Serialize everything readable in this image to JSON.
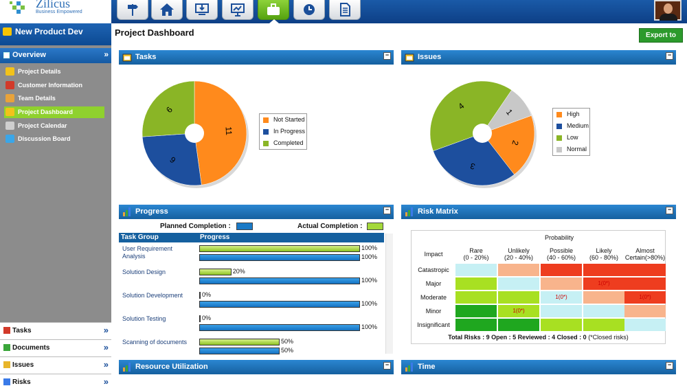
{
  "app": {
    "logo_text": "Zilicus",
    "tagline": "Business Empowered"
  },
  "nav": {
    "tabs": [
      "signpost-icon",
      "home-icon",
      "download-monitor-icon",
      "presentation-icon",
      "briefcase-icon",
      "clock-icon",
      "document-icon"
    ],
    "active_index": 4
  },
  "sidebar": {
    "project": "New Product Dev",
    "section": "Overview",
    "items": [
      {
        "label": "Project Details",
        "color": "#f2c21a"
      },
      {
        "label": "Customer Information",
        "color": "#d23a2a"
      },
      {
        "label": "Team Details",
        "color": "#e8a33a"
      },
      {
        "label": "Project Dashboard",
        "color": "#f2c21a",
        "active": true
      },
      {
        "label": "Project Calendar",
        "color": "#cfcfcf"
      },
      {
        "label": "Discussion Board",
        "color": "#3aa6e8"
      }
    ],
    "bottom": [
      {
        "label": "Tasks",
        "color": "#d23a2a"
      },
      {
        "label": "Documents",
        "color": "#3aa63a"
      },
      {
        "label": "Issues",
        "color": "#e8b52a"
      },
      {
        "label": "Risks",
        "color": "#3a7ae8"
      }
    ]
  },
  "main": {
    "title": "Project Dashboard",
    "export_label": "Export to pdf"
  },
  "panels": {
    "tasks": "Tasks",
    "issues": "Issues",
    "progress": "Progress",
    "risk_matrix": "Risk Matrix",
    "resource": "Resource Utilization",
    "time": "Time"
  },
  "tasks_chart": {
    "type": "pie",
    "labels": [
      "Not Started",
      "In Progress",
      "Completed"
    ],
    "values": [
      11,
      6,
      6
    ],
    "colors": [
      "#ff8a1c",
      "#1d4f9e",
      "#8ab526"
    ]
  },
  "issues_chart": {
    "type": "pie",
    "labels": [
      "High",
      "Medium",
      "Low",
      "Normal"
    ],
    "values": [
      2,
      3,
      4,
      1
    ],
    "colors": [
      "#ff8a1c",
      "#1d4f9e",
      "#8ab526",
      "#c8c8c8"
    ]
  },
  "progress": {
    "planned_label": "Planned Completion :",
    "actual_label": "Actual Completion :",
    "col_group": "Task Group",
    "col_progress": "Progress",
    "rows": [
      {
        "name": "User Requirement Analysis",
        "actual": 100,
        "planned": 100
      },
      {
        "name": "Solution Design",
        "actual": 20,
        "planned": 100
      },
      {
        "name": "Solution Development",
        "actual": 0,
        "planned": 100
      },
      {
        "name": "Solution Testing",
        "actual": 0,
        "planned": 100
      },
      {
        "name": "Scanning of documents",
        "actual": 50,
        "planned": 50
      }
    ]
  },
  "risk_matrix": {
    "probability_label": "Probability",
    "impact_label": "Impact",
    "columns": [
      "Rare\n(0 - 20%)",
      "Unlikely\n(20 - 40%)",
      "Possible\n(40 - 60%)",
      "Likely\n(60 - 80%)",
      "Almost\nCertain(>80%)"
    ],
    "rows": [
      "Catastropic",
      "Major",
      "Moderate",
      "Minor",
      "Insignificant"
    ],
    "cells": [
      [
        "#c6f0f4",
        "#f8b48c",
        "#ee3d1f",
        "#ee3d1f",
        "#ee3d1f"
      ],
      [
        "#a8e022",
        "#c6f0f4",
        "#f8b48c",
        "#ee3d1f",
        "#ee3d1f"
      ],
      [
        "#a8e022",
        "#a8e022",
        "#c6f0f4",
        "#f8b48c",
        "#ee3d1f"
      ],
      [
        "#1fa71f",
        "#a8e022",
        "#c6f0f4",
        "#c6f0f4",
        "#f8b48c"
      ],
      [
        "#1fa71f",
        "#1fa71f",
        "#a8e022",
        "#a8e022",
        "#c6f0f4"
      ]
    ],
    "labels": {
      "1-3": "1(0*)",
      "2-2": "1(0*)",
      "1-4": "",
      "2-4": "1(0*)",
      "3-1": "1(0*)"
    },
    "footer": "Total Risks : 9 Open : 5 Reviewed : 4 Closed : 0",
    "footnote": "(*Closed risks)"
  }
}
